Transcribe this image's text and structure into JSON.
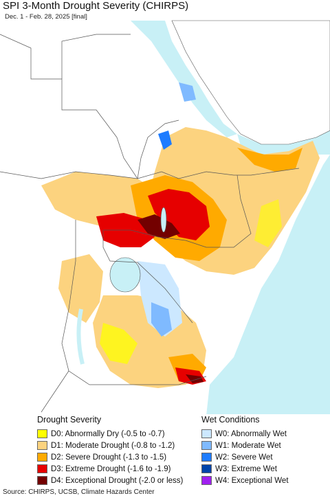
{
  "header": {
    "title": "SPI 3-Month Drought Severity (CHIRPS)",
    "subtitle": "Dec. 1 - Feb. 28, 2025 [final]"
  },
  "legend": {
    "drought": {
      "heading": "Drought Severity",
      "items": [
        {
          "label": "D0: Abnormally Dry (-0.5 to -0.7)",
          "color": "#ffff00"
        },
        {
          "label": "D1: Moderate Drought (-0.8 to -1.2)",
          "color": "#fcd37f"
        },
        {
          "label": "D2: Severe Drought (-1.3 to -1.5)",
          "color": "#ffaa00"
        },
        {
          "label": "D3: Extreme Drought (-1.6 to -1.9)",
          "color": "#e60000"
        },
        {
          "label": "D4: Exceptional Drought (-2.0 or less)",
          "color": "#730000"
        }
      ]
    },
    "wet": {
      "heading": "Wet Conditions",
      "items": [
        {
          "label": "W0: Abnormally Wet",
          "color": "#cce8ff"
        },
        {
          "label": "W1: Moderate Wet",
          "color": "#7fbaff"
        },
        {
          "label": "W2: Severe Wet",
          "color": "#1e7cff"
        },
        {
          "label": "W3: Extreme Wet",
          "color": "#0044aa"
        },
        {
          "label": "W4: Exceptional Wet",
          "color": "#a020f0"
        }
      ]
    }
  },
  "footer": {
    "source": "Source: CHIRPS, UCSB, Climate Hazards Center"
  },
  "map_colors": {
    "water": "#c8f0f6",
    "land": "#ffffff",
    "border": "#555555"
  }
}
